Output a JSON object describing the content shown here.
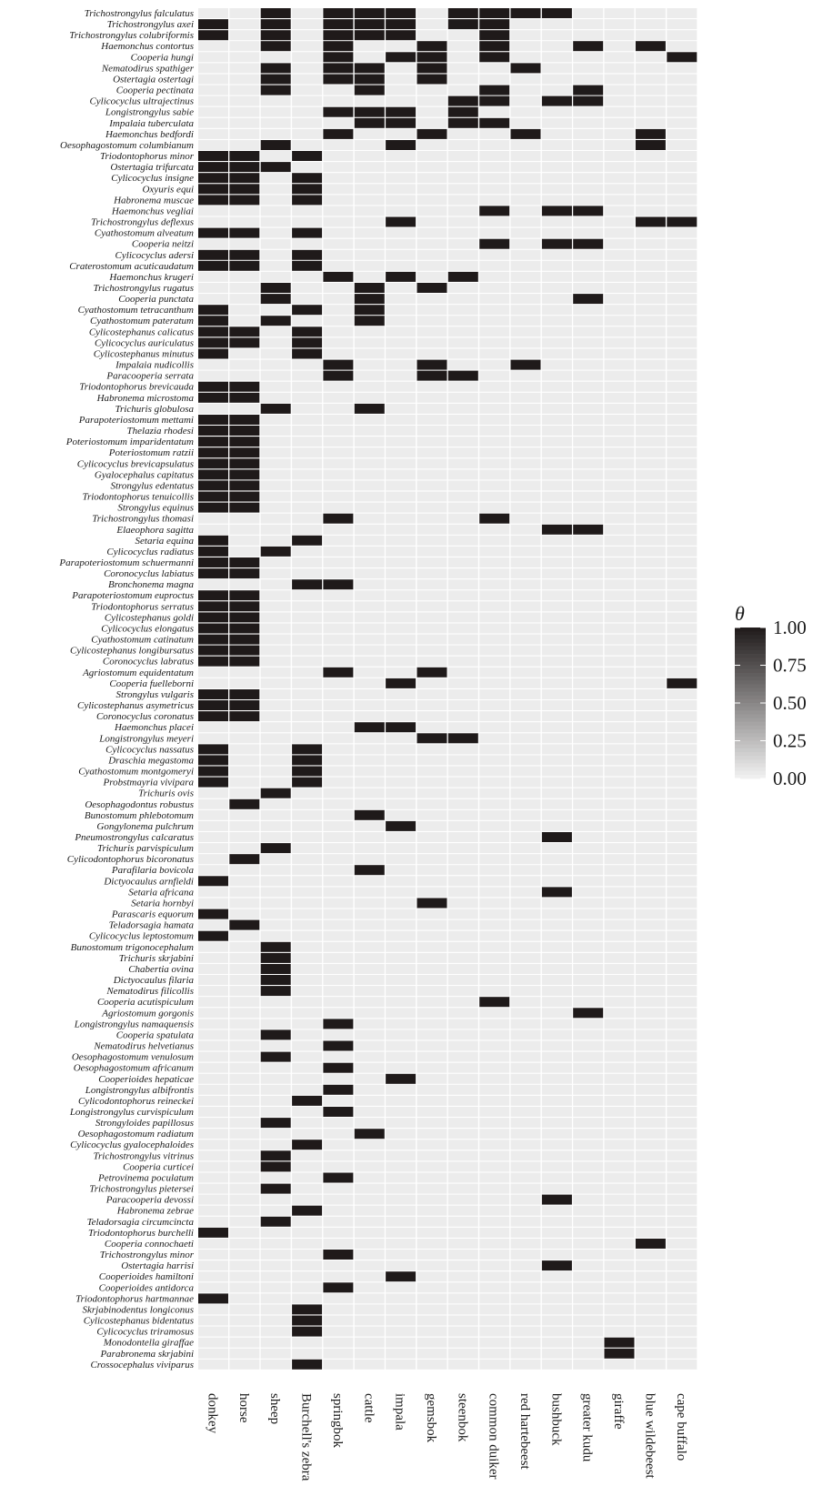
{
  "chart_data": {
    "type": "heatmap",
    "rows": [
      "Trichostrongylus falculatus",
      "Trichostrongylus axei",
      "Trichostrongylus colubriformis",
      "Haemonchus contortus",
      "Cooperia hungi",
      "Nematodirus spathiger",
      "Ostertagia ostertagi",
      "Cooperia pectinata",
      "Cylicocyclus ultrajectinus",
      "Longistrongylus sabie",
      "Impalaia tuberculata",
      "Haemonchus bedfordi",
      "Oesophagostomum columbianum",
      "Triodontophorus minor",
      "Ostertagia trifurcata",
      "Cylicocyclus insigne",
      "Oxyuris equi",
      "Habronema muscae",
      "Haemonchus vegliai",
      "Trichostrongylus deflexus",
      "Cyathostomum alveatum",
      "Cooperia neitzi",
      "Cylicocyclus adersi",
      "Craterostomum acuticaudatum",
      "Haemonchus krugeri",
      "Trichostrongylus rugatus",
      "Cooperia punctata",
      "Cyathostomum tetracanthum",
      "Cyathostomum pateratum",
      "Cylicostephanus calicatus",
      "Cylicocyclus auriculatus",
      "Cylicostephanus minutus",
      "Impalaia nudicollis",
      "Paracooperia serrata",
      "Triodontophorus brevicauda",
      "Habronema microstoma",
      "Trichuris globulosa",
      "Parapoteriostomum mettami",
      "Thelazia rhodesi",
      "Poteriostomum imparidentatum",
      "Poteriostomum ratzii",
      "Cylicocyclus brevicapsulatus",
      "Gyalocephalus capitatus",
      "Strongylus edentatus",
      "Triodontophorus tenuicollis",
      "Strongylus equinus",
      "Trichostrongylus thomasi",
      "Elaeophora sagitta",
      "Setaria equina",
      "Cylicocyclus radiatus",
      "Parapoteriostomum schuermanni",
      "Coronocyclus labiatus",
      "Bronchonema magna",
      "Parapoteriostomum euproctus",
      "Triodontophorus serratus",
      "Cylicostephanus goldi",
      "Cylicocyclus elongatus",
      "Cyathostomum catinatum",
      "Cylicostephanus longibursatus",
      "Coronocyclus labratus",
      "Agriostomum equidentatum",
      "Cooperia fuelleborni",
      "Strongylus vulgaris",
      "Cylicostephanus asymetricus",
      "Coronocyclus coronatus",
      "Haemonchus placei",
      "Longistrongylus meyeri",
      "Cylicocyclus nassatus",
      "Draschia megastoma",
      "Cyathostomum montgomeryi",
      "Probstmayria vivipara",
      "Trichuris ovis",
      "Oesophagodontus robustus",
      "Bunostomum phlebotomum",
      "Gongylonema pulchrum",
      "Pneumostrongylus calcaratus",
      "Trichuris parvispiculum",
      "Cylicodontophorus bicoronatus",
      "Parafilaria bovicola",
      "Dictyocaulus arnfieldi",
      "Setaria africana",
      "Setaria hornbyi",
      "Parascaris equorum",
      "Teladorsagia hamata",
      "Cylicocyclus leptostomum",
      "Bunostomum trigonocephalum",
      "Trichuris skrjabini",
      "Chabertia ovina",
      "Dictyocaulus filaria",
      "Nematodirus filicollis",
      "Cooperia acutispiculum",
      "Agriostomum gorgonis",
      "Longistrongylus namaquensis",
      "Cooperia spatulata",
      "Nematodirus helvetianus",
      "Oesophagostomum venulosum",
      "Oesophagostomum africanum",
      "Cooperioides hepaticae",
      "Longistrongylus albifrontis",
      "Cylicodontophorus reineckei",
      "Longistrongylus curvispiculum",
      "Strongyloides papillosus",
      "Oesophagostomum radiatum",
      "Cylicocyclus gyalocephaloides",
      "Trichostrongylus vitrinus",
      "Cooperia curticei",
      "Petrovinema poculatum",
      "Trichostrongylus pietersei",
      "Paracooperia devossi",
      "Habronema zebrae",
      "Teladorsagia circumcincta",
      "Triodontophorus burchelli",
      "Cooperia connochaeti",
      "Trichostrongylus minor",
      "Ostertagia harrisi",
      "Cooperioides hamiltoni",
      "Cooperioides antidorca",
      "Triodontophorus hartmannae",
      "Skrjabinodentus longiconus",
      "Cylicostephanus bidentatus",
      "Cylicocyclus triramosus",
      "Monodontella giraffae",
      "Parabronema skrjabini",
      "Crossocephalus viviparus"
    ],
    "columns": [
      "donkey",
      "horse",
      "sheep",
      "Burchell's zebra",
      "springbok",
      "cattle",
      "impala",
      "gemsbok",
      "steenbok",
      "common duiker",
      "red hartebeest",
      "bushbuck",
      "greater kudu",
      "giraffe",
      "blue wildebeest",
      "cape buffalo"
    ],
    "present": [
      [
        2,
        4,
        5,
        6,
        8,
        9,
        10,
        11
      ],
      [
        0,
        2,
        4,
        5,
        6,
        8,
        9
      ],
      [
        0,
        2,
        4,
        5,
        6,
        9
      ],
      [
        2,
        4,
        7,
        9,
        12,
        14
      ],
      [
        4,
        6,
        7,
        9,
        15
      ],
      [
        2,
        4,
        5,
        7,
        10
      ],
      [
        2,
        4,
        5,
        7
      ],
      [
        2,
        5,
        9,
        12
      ],
      [
        8,
        9,
        11,
        12
      ],
      [
        4,
        5,
        6,
        8
      ],
      [
        5,
        6,
        8,
        9
      ],
      [
        4,
        7,
        10,
        14
      ],
      [
        2,
        6,
        14
      ],
      [
        0,
        1,
        3
      ],
      [
        0,
        1,
        2
      ],
      [
        0,
        1,
        3
      ],
      [
        0,
        1,
        3
      ],
      [
        0,
        1,
        3
      ],
      [
        9,
        11,
        12
      ],
      [
        6,
        14,
        15
      ],
      [
        0,
        1,
        3
      ],
      [
        9,
        11,
        12
      ],
      [
        0,
        1,
        3
      ],
      [
        0,
        1,
        3
      ],
      [
        4,
        6,
        8
      ],
      [
        2,
        5,
        7
      ],
      [
        2,
        5,
        12
      ],
      [
        0,
        3,
        5
      ],
      [
        0,
        2,
        5
      ],
      [
        0,
        1,
        3
      ],
      [
        0,
        1,
        3
      ],
      [
        0,
        3
      ],
      [
        4,
        7,
        10
      ],
      [
        4,
        7,
        8
      ],
      [
        0,
        1
      ],
      [
        0,
        1
      ],
      [
        2,
        5
      ],
      [
        0,
        1
      ],
      [
        0,
        1
      ],
      [
        0,
        1
      ],
      [
        0,
        1
      ],
      [
        0,
        1
      ],
      [
        0,
        1
      ],
      [
        0,
        1
      ],
      [
        0,
        1
      ],
      [
        0,
        1
      ],
      [
        4,
        9
      ],
      [
        11,
        12
      ],
      [
        0,
        3
      ],
      [
        0,
        2
      ],
      [
        0,
        1
      ],
      [
        0,
        1
      ],
      [
        3,
        4
      ],
      [
        0,
        1
      ],
      [
        0,
        1
      ],
      [
        0,
        1
      ],
      [
        0,
        1
      ],
      [
        0,
        1
      ],
      [
        0,
        1
      ],
      [
        0,
        1
      ],
      [
        4,
        7
      ],
      [
        6,
        15
      ],
      [
        0,
        1
      ],
      [
        0,
        1
      ],
      [
        0,
        1
      ],
      [
        5,
        6
      ],
      [
        7,
        8
      ],
      [
        0,
        3
      ],
      [
        0,
        3
      ],
      [
        0,
        3
      ],
      [
        0,
        3
      ],
      [
        2
      ],
      [
        1
      ],
      [
        5
      ],
      [
        6
      ],
      [
        11
      ],
      [
        2
      ],
      [
        1
      ],
      [
        5
      ],
      [
        0
      ],
      [
        11
      ],
      [
        7
      ],
      [
        0
      ],
      [
        1
      ],
      [
        0
      ],
      [
        2
      ],
      [
        2
      ],
      [
        2
      ],
      [
        2
      ],
      [
        2
      ],
      [
        9
      ],
      [
        12
      ],
      [
        4
      ],
      [
        2
      ],
      [
        4
      ],
      [
        2
      ],
      [
        4
      ],
      [
        6
      ],
      [
        4
      ],
      [
        3
      ],
      [
        4
      ],
      [
        2
      ],
      [
        5
      ],
      [
        3
      ],
      [
        2
      ],
      [
        2
      ],
      [
        4
      ],
      [
        2
      ],
      [
        11
      ],
      [
        3
      ],
      [
        2
      ],
      [
        0
      ],
      [
        14
      ],
      [
        4
      ],
      [
        11
      ],
      [
        6
      ],
      [
        4
      ],
      [
        0
      ],
      [
        3
      ],
      [
        3
      ],
      [
        3
      ],
      [
        13
      ],
      [
        13
      ],
      [
        3
      ]
    ],
    "present_value": 1.0,
    "background_value": 0.03,
    "scale": {
      "min": 0,
      "max": 1,
      "low_color": "#f2f2f2",
      "high_color": "#1f1a1a"
    },
    "legend": {
      "title": "θ",
      "ticks": [
        "1.00",
        "0.75",
        "0.50",
        "0.25",
        "0.00"
      ],
      "tick_values": [
        1.0,
        0.75,
        0.5,
        0.25,
        0.0
      ],
      "position": "right"
    }
  }
}
